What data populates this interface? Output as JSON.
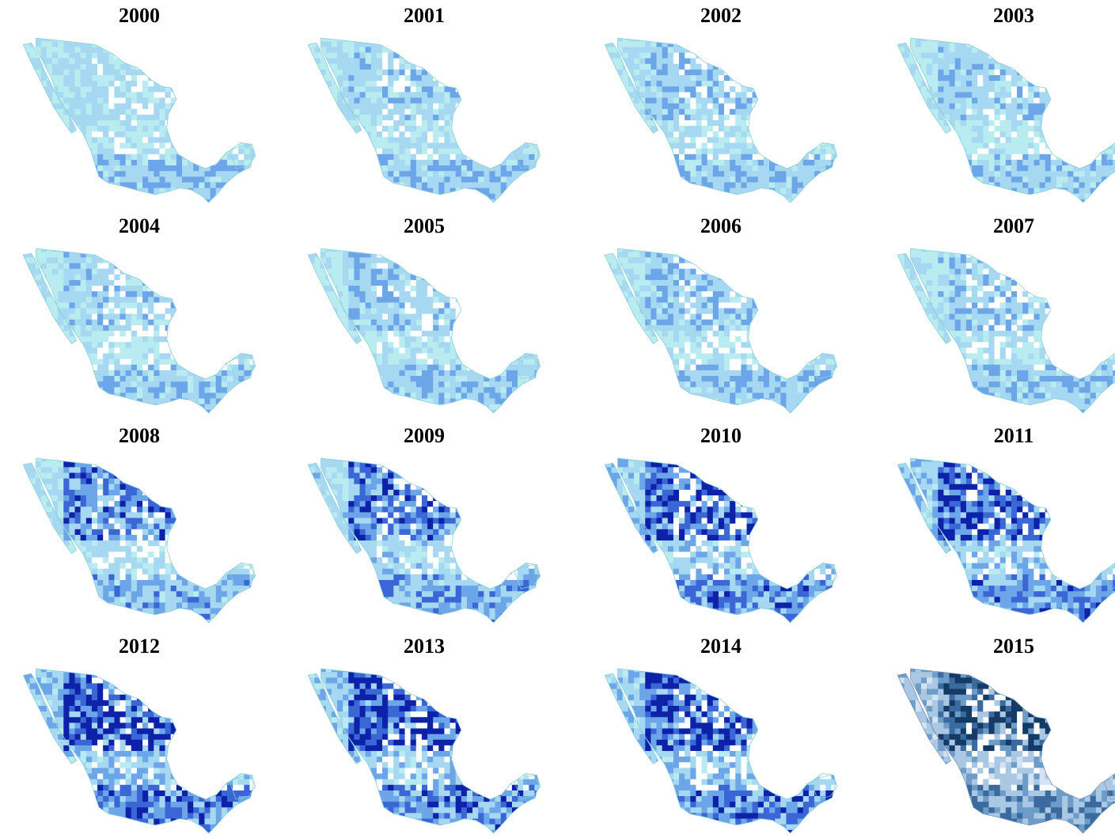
{
  "figure": {
    "panels": [
      {
        "year": "2000",
        "intensity": 0.3,
        "north_intensity": 0.3,
        "style": "cyan"
      },
      {
        "year": "2001",
        "intensity": 0.3,
        "north_intensity": 0.35,
        "style": "cyan"
      },
      {
        "year": "2002",
        "intensity": 0.32,
        "north_intensity": 0.4,
        "style": "cyan"
      },
      {
        "year": "2003",
        "intensity": 0.28,
        "north_intensity": 0.35,
        "style": "cyan"
      },
      {
        "year": "2004",
        "intensity": 0.3,
        "north_intensity": 0.35,
        "style": "cyan"
      },
      {
        "year": "2005",
        "intensity": 0.28,
        "north_intensity": 0.38,
        "style": "cyan"
      },
      {
        "year": "2006",
        "intensity": 0.3,
        "north_intensity": 0.4,
        "style": "cyan"
      },
      {
        "year": "2007",
        "intensity": 0.3,
        "north_intensity": 0.38,
        "style": "cyan"
      },
      {
        "year": "2008",
        "intensity": 0.4,
        "north_intensity": 0.65,
        "style": "cyan"
      },
      {
        "year": "2009",
        "intensity": 0.45,
        "north_intensity": 0.7,
        "style": "cyan"
      },
      {
        "year": "2010",
        "intensity": 0.55,
        "north_intensity": 0.85,
        "style": "cyan"
      },
      {
        "year": "2011",
        "intensity": 0.55,
        "north_intensity": 0.85,
        "style": "cyan"
      },
      {
        "year": "2012",
        "intensity": 0.6,
        "north_intensity": 0.9,
        "style": "cyan"
      },
      {
        "year": "2013",
        "intensity": 0.58,
        "north_intensity": 0.88,
        "style": "cyan"
      },
      {
        "year": "2014",
        "intensity": 0.58,
        "north_intensity": 0.88,
        "style": "cyan"
      },
      {
        "year": "2015",
        "intensity": 0.5,
        "north_intensity": 0.8,
        "style": "steel"
      }
    ],
    "palette": {
      "cyan": [
        "#b8ecf0",
        "#a6d8f2",
        "#6ca6e8",
        "#3a66d6",
        "#0d22a8"
      ],
      "steel": [
        "#d4e3f2",
        "#aac7e4",
        "#6d9cc8",
        "#3b6b9e",
        "#143a66"
      ],
      "background": "#ffffff",
      "gap": "#ffffff"
    }
  }
}
